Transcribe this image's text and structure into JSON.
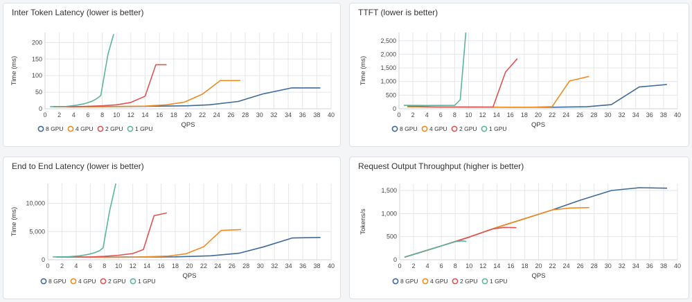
{
  "chart_data": [
    {
      "type": "line",
      "title": "Inter Token Latency (lower is better)",
      "xlabel": "QPS",
      "ylabel": "Time (ms)",
      "xlim": [
        0,
        40
      ],
      "ylim": [
        0,
        230
      ],
      "xticks": [
        0,
        2,
        4,
        6,
        8,
        10,
        12,
        14,
        16,
        18,
        20,
        22,
        24,
        26,
        28,
        30,
        32,
        34,
        36,
        38,
        40
      ],
      "yticks": [
        0,
        50,
        100,
        150,
        200
      ],
      "ytick_labels": [
        "0",
        "50",
        "100",
        "150",
        "200"
      ],
      "grid": true,
      "legend": "bottom-left",
      "series": [
        {
          "name": "8 GPU",
          "color": "#3d6a99",
          "points": [
            [
              1.2,
              6
            ],
            [
              4,
              6
            ],
            [
              8,
              6
            ],
            [
              12,
              7
            ],
            [
              16,
              8
            ],
            [
              20,
              9
            ],
            [
              23,
              12
            ],
            [
              27,
              22
            ],
            [
              30.5,
              45
            ],
            [
              34.5,
              63
            ],
            [
              38.5,
              63
            ]
          ]
        },
        {
          "name": "4 GPU",
          "color": "#f18b1f",
          "points": [
            [
              1.2,
              6
            ],
            [
              5,
              6
            ],
            [
              10,
              7
            ],
            [
              14,
              8
            ],
            [
              17,
              12
            ],
            [
              19.5,
              20
            ],
            [
              22,
              44
            ],
            [
              24.5,
              85
            ],
            [
              27.3,
              85
            ]
          ]
        },
        {
          "name": "2 GPU",
          "color": "#e05353",
          "points": [
            [
              1.2,
              6
            ],
            [
              4,
              6
            ],
            [
              8,
              9
            ],
            [
              10,
              12
            ],
            [
              12,
              19
            ],
            [
              14,
              38
            ],
            [
              15.5,
              133
            ],
            [
              17,
              133
            ]
          ]
        },
        {
          "name": "1 GPU",
          "color": "#5bb59b",
          "points": [
            [
              0.7,
              6
            ],
            [
              3,
              7
            ],
            [
              4.5,
              11
            ],
            [
              5.5,
              15
            ],
            [
              6.5,
              22
            ],
            [
              7.2,
              30
            ],
            [
              7.8,
              40
            ],
            [
              8.8,
              165
            ],
            [
              9.6,
              225
            ]
          ]
        }
      ]
    },
    {
      "type": "line",
      "title": "TTFT (lower is better)",
      "xlabel": "QPS",
      "ylabel": "Time (ms)",
      "xlim": [
        0,
        40
      ],
      "ylim": [
        0,
        2800
      ],
      "xticks": [
        0,
        2,
        4,
        6,
        8,
        10,
        12,
        14,
        16,
        18,
        20,
        22,
        24,
        26,
        28,
        30,
        32,
        34,
        36,
        38,
        40
      ],
      "yticks": [
        0,
        500,
        1000,
        1500,
        2000,
        2500
      ],
      "ytick_labels": [
        "0",
        "500",
        "1,000",
        "1,500",
        "2,000",
        "2,500"
      ],
      "grid": true,
      "legend": "bottom-left",
      "series": [
        {
          "name": "8 GPU",
          "color": "#3d6a99",
          "points": [
            [
              1.2,
              75
            ],
            [
              8,
              60
            ],
            [
              16,
              55
            ],
            [
              22,
              55
            ],
            [
              27,
              75
            ],
            [
              30.5,
              150
            ],
            [
              34.5,
              800
            ],
            [
              38.5,
              890
            ]
          ]
        },
        {
          "name": "4 GPU",
          "color": "#f18b1f",
          "points": [
            [
              1.2,
              75
            ],
            [
              8,
              60
            ],
            [
              16,
              55
            ],
            [
              19,
              55
            ],
            [
              22,
              80
            ],
            [
              24.5,
              1020
            ],
            [
              27.3,
              1190
            ]
          ]
        },
        {
          "name": "2 GPU",
          "color": "#e05353",
          "points": [
            [
              1.2,
              100
            ],
            [
              5,
              70
            ],
            [
              9,
              60
            ],
            [
              13.5,
              60
            ],
            [
              15.3,
              1350
            ],
            [
              17,
              1840
            ]
          ]
        },
        {
          "name": "1 GPU",
          "color": "#5bb59b",
          "points": [
            [
              0.7,
              125
            ],
            [
              4,
              120
            ],
            [
              8,
              125
            ],
            [
              8.8,
              330
            ],
            [
              9.6,
              2800
            ]
          ]
        }
      ]
    },
    {
      "type": "line",
      "title": "End to End Latency (lower is better)",
      "xlabel": "QPS",
      "ylabel": "Time (ms)",
      "xlim": [
        0,
        40
      ],
      "ylim": [
        0,
        13500
      ],
      "xticks": [
        0,
        2,
        4,
        6,
        8,
        10,
        12,
        14,
        16,
        18,
        20,
        22,
        24,
        26,
        28,
        30,
        32,
        34,
        36,
        38,
        40
      ],
      "yticks": [
        0,
        5000,
        10000
      ],
      "ytick_labels": [
        "0",
        "5,000",
        "10,000"
      ],
      "grid": true,
      "legend": "bottom-left",
      "series": [
        {
          "name": "8 GPU",
          "color": "#3d6a99",
          "points": [
            [
              1.2,
              500
            ],
            [
              6,
              450
            ],
            [
              12,
              480
            ],
            [
              18,
              520
            ],
            [
              23,
              700
            ],
            [
              27,
              1150
            ],
            [
              30.5,
              2300
            ],
            [
              34.5,
              3850
            ],
            [
              38.5,
              3950
            ]
          ]
        },
        {
          "name": "4 GPU",
          "color": "#f18b1f",
          "points": [
            [
              1.2,
              500
            ],
            [
              8,
              420
            ],
            [
              12,
              450
            ],
            [
              17,
              650
            ],
            [
              19.5,
              1050
            ],
            [
              22,
              2300
            ],
            [
              24.5,
              5200
            ],
            [
              27.3,
              5350
            ]
          ]
        },
        {
          "name": "2 GPU",
          "color": "#e05353",
          "points": [
            [
              1.2,
              500
            ],
            [
              6,
              500
            ],
            [
              8,
              600
            ],
            [
              10,
              800
            ],
            [
              12,
              1100
            ],
            [
              13.5,
              1800
            ],
            [
              15,
              7800
            ],
            [
              16.8,
              8300
            ]
          ]
        },
        {
          "name": "1 GPU",
          "color": "#5bb59b",
          "points": [
            [
              0.7,
              500
            ],
            [
              3,
              550
            ],
            [
              4.5,
              700
            ],
            [
              5.5,
              900
            ],
            [
              6.5,
              1200
            ],
            [
              7.3,
              1600
            ],
            [
              7.8,
              2100
            ],
            [
              8.7,
              8500
            ],
            [
              9.6,
              13500
            ]
          ]
        }
      ]
    },
    {
      "type": "line",
      "title": "Request Output Throughput (higher is better)",
      "xlabel": "QPS",
      "ylabel": "Tokens/s",
      "xlim": [
        0,
        40
      ],
      "ylim": [
        0,
        1650
      ],
      "xticks": [
        0,
        2,
        4,
        6,
        8,
        10,
        12,
        14,
        16,
        18,
        20,
        22,
        24,
        26,
        28,
        30,
        32,
        34,
        36,
        38,
        40
      ],
      "yticks": [
        0,
        500,
        1000,
        1500
      ],
      "ytick_labels": [
        "0",
        "500",
        "1,000",
        "1,500"
      ],
      "grid": true,
      "legend": "bottom-left",
      "series": [
        {
          "name": "8 GPU",
          "color": "#3d6a99",
          "points": [
            [
              0.7,
              55
            ],
            [
              6,
              300
            ],
            [
              10,
              490
            ],
            [
              14,
              700
            ],
            [
              18,
              890
            ],
            [
              22,
              1080
            ],
            [
              26,
              1290
            ],
            [
              30.5,
              1500
            ],
            [
              34.5,
              1560
            ],
            [
              38.5,
              1550
            ]
          ]
        },
        {
          "name": "4 GPU",
          "color": "#f18b1f",
          "points": [
            [
              0.7,
              55
            ],
            [
              6,
              300
            ],
            [
              10,
              490
            ],
            [
              14,
              700
            ],
            [
              18,
              890
            ],
            [
              22,
              1080
            ],
            [
              24.5,
              1120
            ],
            [
              27.3,
              1130
            ]
          ]
        },
        {
          "name": "2 GPU",
          "color": "#e05353",
          "points": [
            [
              0.7,
              55
            ],
            [
              6,
              300
            ],
            [
              10,
              490
            ],
            [
              13.5,
              670
            ],
            [
              15,
              700
            ],
            [
              16.8,
              695
            ]
          ]
        },
        {
          "name": "1 GPU",
          "color": "#5bb59b",
          "points": [
            [
              0.7,
              55
            ],
            [
              4,
              210
            ],
            [
              6,
              300
            ],
            [
              8,
              390
            ],
            [
              9,
              410
            ],
            [
              9.6,
              395
            ]
          ]
        }
      ]
    }
  ]
}
